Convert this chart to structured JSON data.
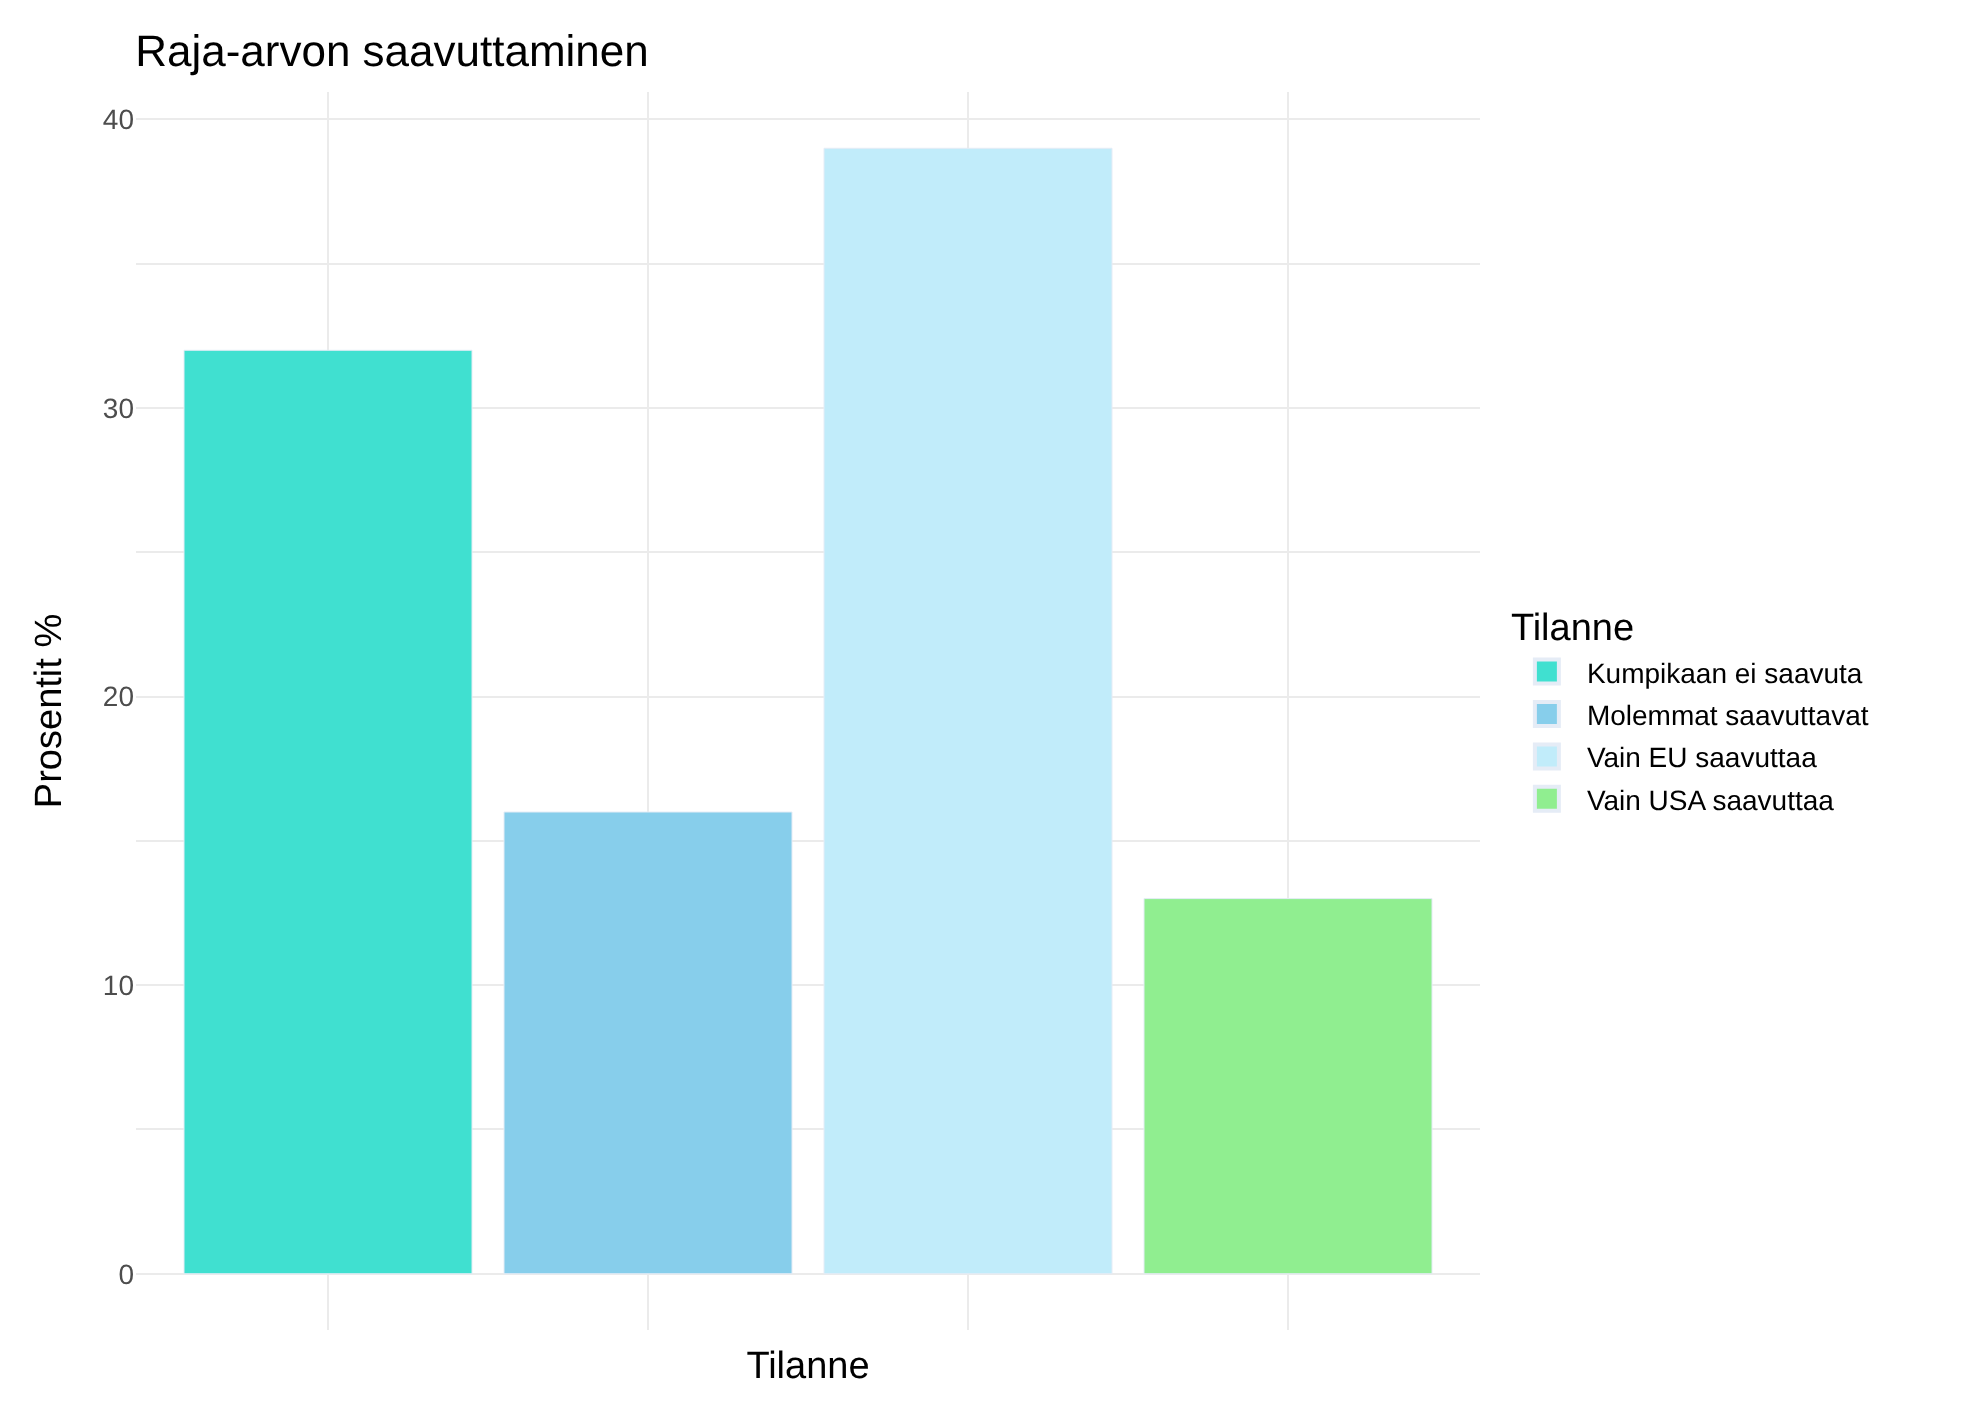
{
  "chart_data": {
    "type": "bar",
    "title": "Raja-arvon saavuttaminen",
    "xlabel": "Tilanne",
    "ylabel": "Prosentit %",
    "legend_title": "Tilanne",
    "categories": [
      null,
      null,
      null,
      null
    ],
    "series": [
      {
        "name": "Kumpikaan ei saavuta",
        "color": "#40e0d0",
        "values": [
          32,
          null,
          null,
          null
        ]
      },
      {
        "name": "Molemmat saavuttavat",
        "color": "#87ceeb",
        "values": [
          null,
          16,
          null,
          null
        ]
      },
      {
        "name": "Vain EU saavuttaa",
        "color": "#c1ecfa",
        "values": [
          null,
          null,
          39,
          null
        ]
      },
      {
        "name": "Vain USA saavuttaa",
        "color": "#90ee90",
        "values": [
          null,
          null,
          null,
          13
        ]
      }
    ],
    "ylim": [
      -1.95,
      40.95
    ],
    "yticks": [
      0,
      {
        "value": 5,
        "label": null
      },
      10,
      {
        "value": 15,
        "label": null
      },
      20,
      {
        "value": 25,
        "label": null
      },
      30,
      {
        "value": 35,
        "label": null
      },
      40
    ],
    "grid": true,
    "legend": "right"
  }
}
